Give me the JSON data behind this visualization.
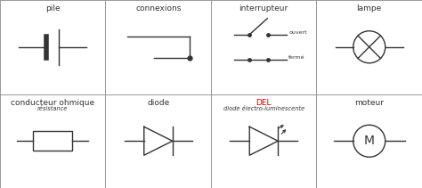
{
  "background": "#ffffff",
  "border_color": "#333333",
  "symbol_color": "#333333",
  "text_color": "#333333",
  "del_color": "#cc0000",
  "cells": [
    {
      "label": "pile",
      "sublabel": "",
      "col": 0,
      "row": 0
    },
    {
      "label": "connexions",
      "sublabel": "",
      "col": 1,
      "row": 0
    },
    {
      "label": "interrupteur",
      "sublabel": "",
      "col": 2,
      "row": 0
    },
    {
      "label": "lampe",
      "sublabel": "",
      "col": 3,
      "row": 0
    },
    {
      "label": "conducteur ohmique",
      "sublabel": "résistance",
      "col": 0,
      "row": 1
    },
    {
      "label": "diode",
      "sublabel": "",
      "col": 1,
      "row": 1
    },
    {
      "label": "DEL",
      "sublabel": "diode électro-luminescente",
      "col": 2,
      "row": 1
    },
    {
      "label": "moteur",
      "sublabel": "",
      "col": 3,
      "row": 1
    }
  ],
  "label_fontsize": 6.5,
  "sublabel_fontsize": 4.8
}
